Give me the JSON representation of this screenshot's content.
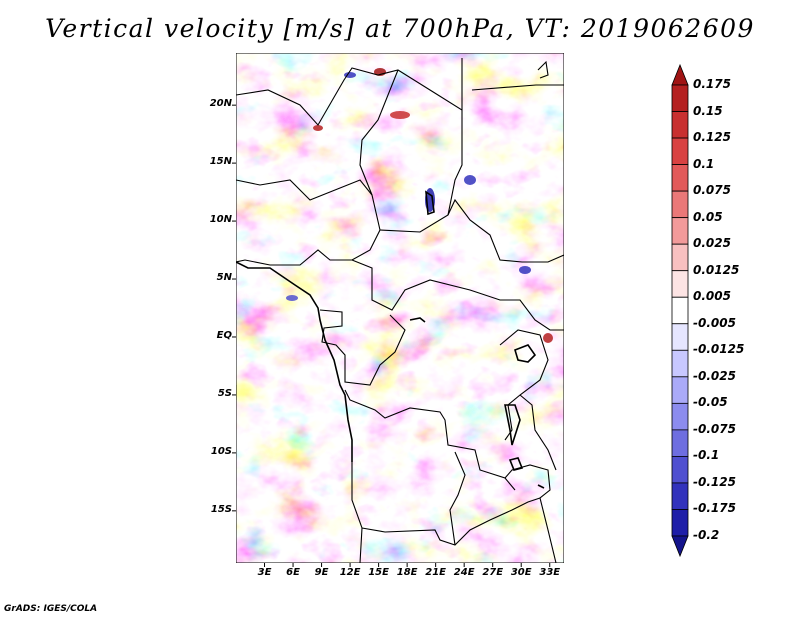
{
  "title": "Vertical velocity [m/s] at 700hPa, VT: 2019062609",
  "credit": "GrADS: IGES/COLA",
  "chart_data": {
    "type": "heatmap",
    "variable": "Vertical velocity",
    "units": "m/s",
    "level": "700hPa",
    "valid_time": "2019062609",
    "lon_range": [
      0,
      34.5
    ],
    "lat_range": [
      -19.5,
      24.5
    ],
    "x_ticks": [
      "3E",
      "6E",
      "9E",
      "12E",
      "15E",
      "18E",
      "21E",
      "24E",
      "27E",
      "30E",
      "33E"
    ],
    "x_tick_values": [
      3,
      6,
      9,
      12,
      15,
      18,
      21,
      24,
      27,
      30,
      33
    ],
    "y_ticks": [
      "20N",
      "15N",
      "10N",
      "5N",
      "EQ",
      "5S",
      "10S",
      "15S"
    ],
    "y_tick_values": [
      20,
      15,
      10,
      5,
      0,
      -5,
      -10,
      -15
    ],
    "colorbar": {
      "labels": [
        "0.175",
        "0.15",
        "0.125",
        "0.1",
        "0.075",
        "0.05",
        "0.025",
        "0.0125",
        "0.005",
        "-0.005",
        "-0.0125",
        "-0.025",
        "-0.05",
        "-0.075",
        "-0.1",
        "-0.125",
        "-0.175",
        "-0.2"
      ],
      "colors": [
        "#a01414",
        "#b42020",
        "#c83030",
        "#d84242",
        "#e25a5a",
        "#ea7878",
        "#f29a9a",
        "#f8c0c0",
        "#fde4e4",
        "#ffffff",
        "#e6e6ff",
        "#c8c8ff",
        "#aaaaf8",
        "#8c8cee",
        "#6e6ee0",
        "#5050d0",
        "#3232bc",
        "#1e1ea8",
        "#14148c"
      ],
      "extend": "both"
    },
    "grid": false
  }
}
